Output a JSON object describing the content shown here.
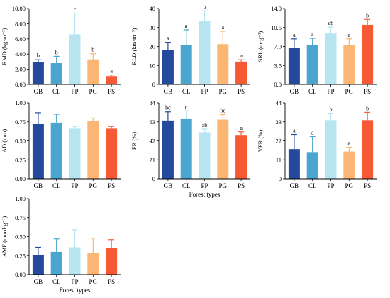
{
  "colors": [
    "#234a9c",
    "#4aa6ce",
    "#b6e4f0",
    "#fbb674",
    "#f55a34"
  ],
  "chart_data": [
    {
      "type": "bar",
      "categories": [
        "GB",
        "CL",
        "PP",
        "PG",
        "PS"
      ],
      "ylabel": "RMD (kg·m⁻³)",
      "xlabel": "",
      "ylim": [
        0,
        10
      ],
      "yticks": [
        "0.00",
        "2.00",
        "4.00",
        "6.00",
        "8.00",
        "10.00"
      ],
      "ytick_values": [
        0,
        2,
        4,
        6,
        8,
        10
      ],
      "values": [
        2.9,
        2.8,
        6.6,
        3.3,
        1.1
      ],
      "errors": [
        0.35,
        0.9,
        2.8,
        0.75,
        0.15
      ],
      "letters": [
        "b",
        "b",
        "c",
        "b",
        "a"
      ],
      "grid": false
    },
    {
      "type": "bar",
      "categories": [
        "GB",
        "CL",
        "PP",
        "PG",
        "PS"
      ],
      "ylabel": "RLD (km·m⁻³)",
      "xlabel": "",
      "ylim": [
        0,
        40
      ],
      "yticks": [
        "0",
        "10",
        "20",
        "30",
        "40"
      ],
      "ytick_values": [
        0,
        10,
        20,
        30,
        40
      ],
      "values": [
        18.2,
        20.8,
        33.3,
        21.2,
        12.0
      ],
      "errors": [
        4.0,
        8.0,
        5.5,
        6.8,
        1.0
      ],
      "letters": [
        "a",
        "a",
        "b",
        "a",
        "a"
      ],
      "grid": false
    },
    {
      "type": "bar",
      "categories": [
        "GB",
        "CL",
        "PP",
        "PG",
        "PS"
      ],
      "ylabel": "SRL (m·g⁻¹)",
      "xlabel": "",
      "ylim": [
        0,
        14
      ],
      "yticks": [
        "0.0",
        "3.5",
        "7.0",
        "10.5",
        "14.0"
      ],
      "ytick_values": [
        0,
        3.5,
        7,
        10.5,
        14
      ],
      "values": [
        6.7,
        7.3,
        9.4,
        7.2,
        11.0
      ],
      "errors": [
        1.7,
        1.2,
        1.2,
        1.2,
        1.0
      ],
      "letters": [
        "a",
        "a",
        "ab",
        "a",
        "b"
      ],
      "grid": false
    },
    {
      "type": "bar",
      "categories": [
        "GB",
        "CL",
        "PP",
        "PG",
        "PS"
      ],
      "ylabel": "AD (mm)",
      "xlabel": "",
      "ylim": [
        0,
        1
      ],
      "yticks": [
        "0.00",
        "0.25",
        "0.50",
        "0.75",
        "1.00"
      ],
      "ytick_values": [
        0,
        0.25,
        0.5,
        0.75,
        1
      ],
      "values": [
        0.72,
        0.74,
        0.66,
        0.76,
        0.66
      ],
      "errors": [
        0.15,
        0.11,
        0.03,
        0.04,
        0.03
      ],
      "letters": [
        "",
        "",
        "",
        "",
        ""
      ],
      "grid": false
    },
    {
      "type": "bar",
      "categories": [
        "GB",
        "CL",
        "PP",
        "PG",
        "PS"
      ],
      "ylabel": "FR (%)",
      "xlabel": "Forest types",
      "ylim": [
        0,
        84
      ],
      "yticks": [
        "0",
        "21",
        "42",
        "63",
        "84"
      ],
      "ytick_values": [
        0,
        21,
        42,
        63,
        84
      ],
      "values": [
        64.5,
        66.0,
        51.5,
        65.5,
        48.5
      ],
      "errors": [
        9.5,
        9.0,
        3.5,
        5.5,
        3.5
      ],
      "letters": [
        "bc",
        "c",
        "ab",
        "bc",
        "a"
      ],
      "grid": false
    },
    {
      "type": "bar",
      "categories": [
        "GB",
        "CL",
        "PP",
        "PG",
        "PS"
      ],
      "ylabel": "VFR (%)",
      "xlabel": "",
      "ylim": [
        0,
        44
      ],
      "yticks": [
        "0",
        "11",
        "22",
        "33",
        "44"
      ],
      "ytick_values": [
        0,
        11,
        22,
        33,
        44
      ],
      "values": [
        17.2,
        15.5,
        34.0,
        15.8,
        34.0
      ],
      "errors": [
        8.5,
        9.0,
        4.0,
        2.5,
        4.5
      ],
      "letters": [
        "a",
        "a",
        "b",
        "a",
        "b"
      ],
      "grid": false
    },
    {
      "type": "bar",
      "categories": [
        "GB",
        "CL",
        "PP",
        "PG",
        "PS"
      ],
      "ylabel": "AMF (nmol·g⁻¹)",
      "xlabel": "Forest types",
      "ylim": [
        0,
        1
      ],
      "yticks": [
        "0.00",
        "0.25",
        "0.50",
        "0.75",
        "1.00"
      ],
      "ytick_values": [
        0,
        0.25,
        0.5,
        0.75,
        1
      ],
      "values": [
        0.26,
        0.3,
        0.36,
        0.29,
        0.35
      ],
      "errors": [
        0.1,
        0.17,
        0.23,
        0.19,
        0.11
      ],
      "letters": [
        "",
        "",
        "",
        "",
        ""
      ],
      "grid": false
    }
  ]
}
